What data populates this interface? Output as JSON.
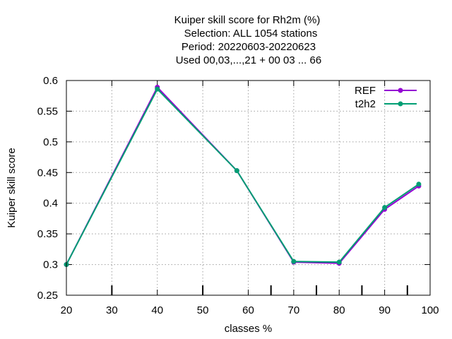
{
  "chart_data": {
    "type": "line",
    "title": [
      "Kuiper skill score  for Rh2m (%)",
      "Selection: ALL   1054 stations",
      "Period: 20220603-20220623",
      "Used  00,03,...,21  + 00 03 ... 66"
    ],
    "xlabel": "classes %",
    "ylabel": "Kuiper skill score",
    "xlim": [
      20,
      100
    ],
    "ylim": [
      0.25,
      0.6
    ],
    "xticks": [
      20,
      30,
      40,
      50,
      60,
      70,
      80,
      90,
      100
    ],
    "yticks": [
      0.25,
      0.3,
      0.35,
      0.4,
      0.45,
      0.5,
      0.55,
      0.6
    ],
    "xtick_labels": [
      "20",
      "30",
      "40",
      "50",
      "60",
      "70",
      "80",
      "90",
      "100"
    ],
    "ytick_labels": [
      "0.25",
      "0.3",
      "0.35",
      "0.4",
      "0.45",
      "0.5",
      "0.55",
      "0.6"
    ],
    "minor_xticks": [
      30,
      50,
      65,
      75,
      85,
      95
    ],
    "grid": true,
    "legend_position": "top-right",
    "series": [
      {
        "name": "REF",
        "color": "#9400d3",
        "x": [
          20,
          40,
          57.5,
          70,
          80,
          90,
          97.5
        ],
        "y": [
          0.3,
          0.589,
          0.453,
          0.304,
          0.302,
          0.39,
          0.428
        ]
      },
      {
        "name": "t2h2",
        "color": "#009e73",
        "x": [
          20,
          40,
          57.5,
          70,
          80,
          90,
          97.5
        ],
        "y": [
          0.3,
          0.586,
          0.453,
          0.305,
          0.304,
          0.393,
          0.431
        ]
      }
    ]
  }
}
